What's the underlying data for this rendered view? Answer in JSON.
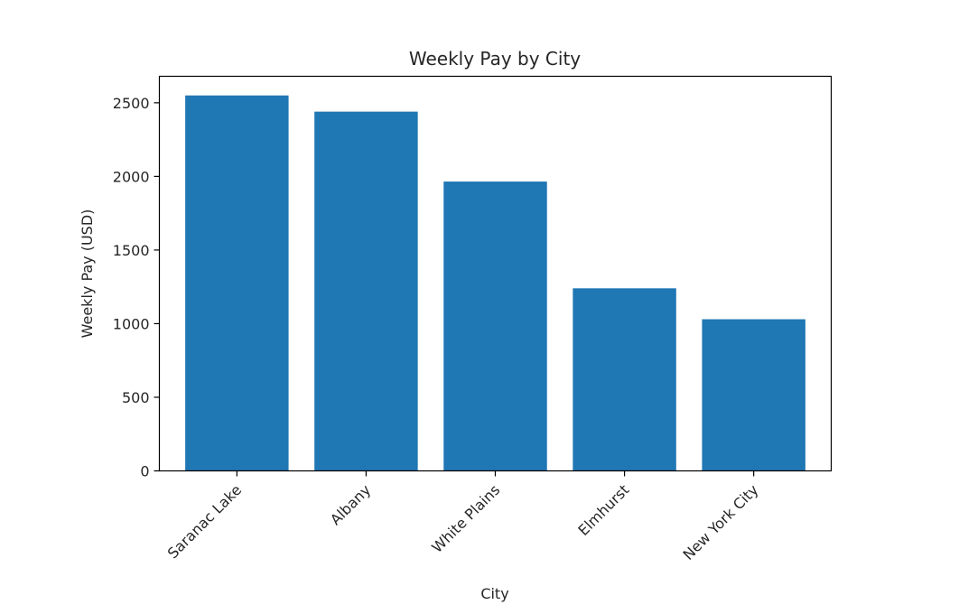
{
  "chart_data": {
    "type": "bar",
    "title": "Weekly Pay by City",
    "xlabel": "City",
    "ylabel": "Weekly Pay (USD)",
    "categories": [
      "Saranac Lake",
      "Albany",
      "White Plains",
      "Elmhurst",
      "New York City"
    ],
    "values": [
      2550,
      2440,
      1965,
      1240,
      1030
    ],
    "yticks": [
      0,
      500,
      1000,
      1500,
      2000,
      2500
    ],
    "ylim": [
      0,
      2680
    ],
    "grid": false,
    "legend": "none",
    "bar_color": "#1f77b4"
  }
}
